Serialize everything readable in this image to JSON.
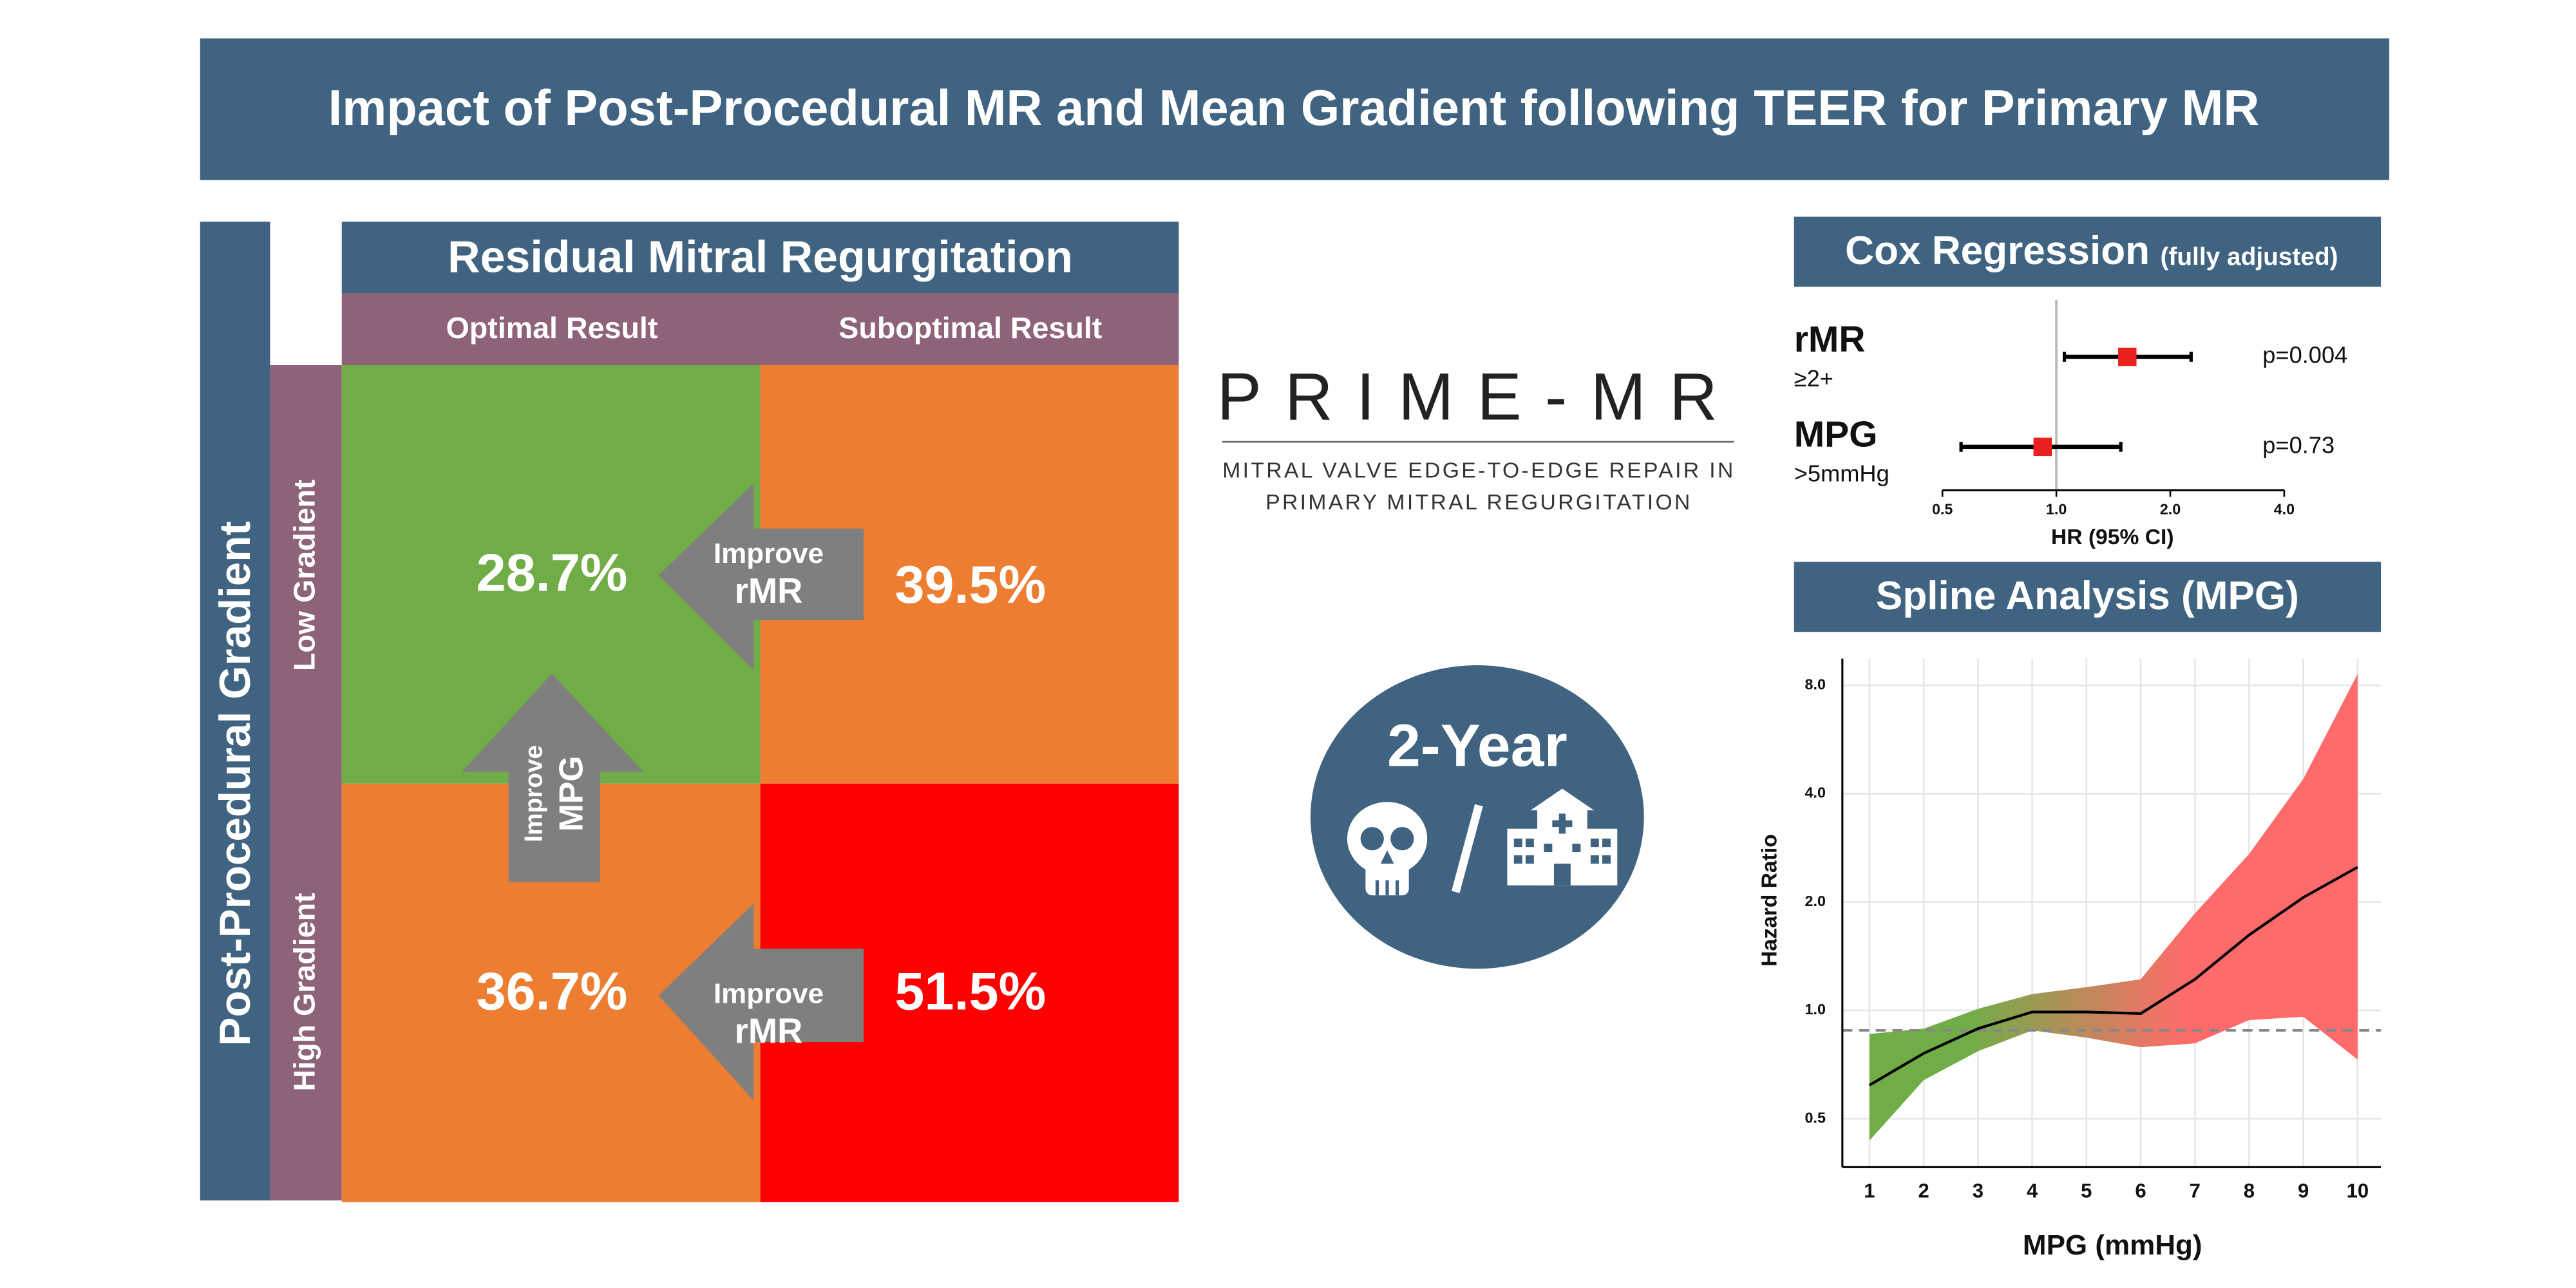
{
  "header": {
    "title": "Impact of Post-Procedural MR and Mean Gradient following TEER for Primary MR"
  },
  "matrix": {
    "col_header": "Residual Mitral Regurgitation",
    "cols": [
      "Optimal Result",
      "Suboptimal Result"
    ],
    "row_header": "Post-Procedural Gradient",
    "rows": [
      "Low Gradient",
      "High Gradient"
    ],
    "cells": [
      [
        {
          "value": 28.7,
          "label": "28.7%",
          "color": "#70ad47"
        },
        {
          "value": 39.5,
          "label": "39.5%",
          "color": "#ed7d31"
        }
      ],
      [
        {
          "value": 36.7,
          "label": "36.7%",
          "color": "#ed7d31"
        },
        {
          "value": 51.5,
          "label": "51.5%",
          "color": "#ff0000"
        }
      ]
    ],
    "arrows": [
      {
        "line1": "Improve",
        "line2": "rMR"
      },
      {
        "line1": "Improve",
        "line2": "MPG"
      },
      {
        "line1": "Improve",
        "line2": "rMR"
      }
    ]
  },
  "logo": {
    "name": "PRIME-MR",
    "line1": "MITRAL VALVE EDGE-TO-EDGE REPAIR IN",
    "line2": "PRIMARY MITRAL REGURGITATION"
  },
  "outcome": {
    "label": "2-Year"
  },
  "cox": {
    "title": "Cox Regression",
    "qualifier": "(fully adjusted)",
    "xlabel": "HR (95% CI)",
    "log": true,
    "xlim": [
      0.5,
      4
    ],
    "xticks": [
      0.5,
      {
        "value": 1,
        "label": "1.0"
      },
      {
        "value": 2,
        "label": "2.0"
      },
      {
        "value": 4,
        "label": "4.0"
      }
    ],
    "reference": 1,
    "color": "#e8201e",
    "rows": [
      {
        "name": "rMR",
        "sub": "≥2+",
        "hr": 1.54,
        "ci_low": 1.05,
        "ci_high": 2.27,
        "p": "p=0.004"
      },
      {
        "name": "MPG",
        "sub": ">5mmHg",
        "hr": 0.92,
        "ci_low": 0.56,
        "ci_high": 1.48,
        "p": "p=0.73"
      }
    ]
  },
  "spline": {
    "title": "Spline Analysis (MPG)",
    "type": "line",
    "xlabel": "MPG (mmHg)",
    "ylabel": "Hazard Ratio",
    "xlim": [
      0.5,
      10.43
    ],
    "ylim": [
      0.367,
      9.49
    ],
    "log_y": true,
    "grid": true,
    "xticks": [
      1,
      2,
      3,
      4,
      5,
      6,
      7,
      8,
      9,
      10
    ],
    "yticks": [
      0.5,
      {
        "value": 1,
        "label": "1.0"
      },
      {
        "value": 2,
        "label": "2.0"
      },
      {
        "value": 4,
        "label": "4.0"
      },
      {
        "value": 8,
        "label": "8.0"
      }
    ],
    "reference": 0.88,
    "x": [
      1,
      2,
      3,
      4,
      5,
      6,
      7,
      8,
      9,
      10
    ],
    "values": [
      0.62,
      0.76,
      0.89,
      0.99,
      0.99,
      0.98,
      1.22,
      1.62,
      2.06,
      2.5
    ],
    "lower": [
      0.435,
      0.64,
      0.77,
      0.88,
      0.84,
      0.79,
      0.81,
      0.94,
      0.96,
      0.73
    ],
    "upper": [
      0.86,
      0.89,
      1.01,
      1.11,
      1.16,
      1.22,
      1.86,
      2.72,
      4.4,
      8.6
    ],
    "line_color": "#000000",
    "band_colors": [
      "#70ad47",
      "#ff6b6b"
    ]
  }
}
